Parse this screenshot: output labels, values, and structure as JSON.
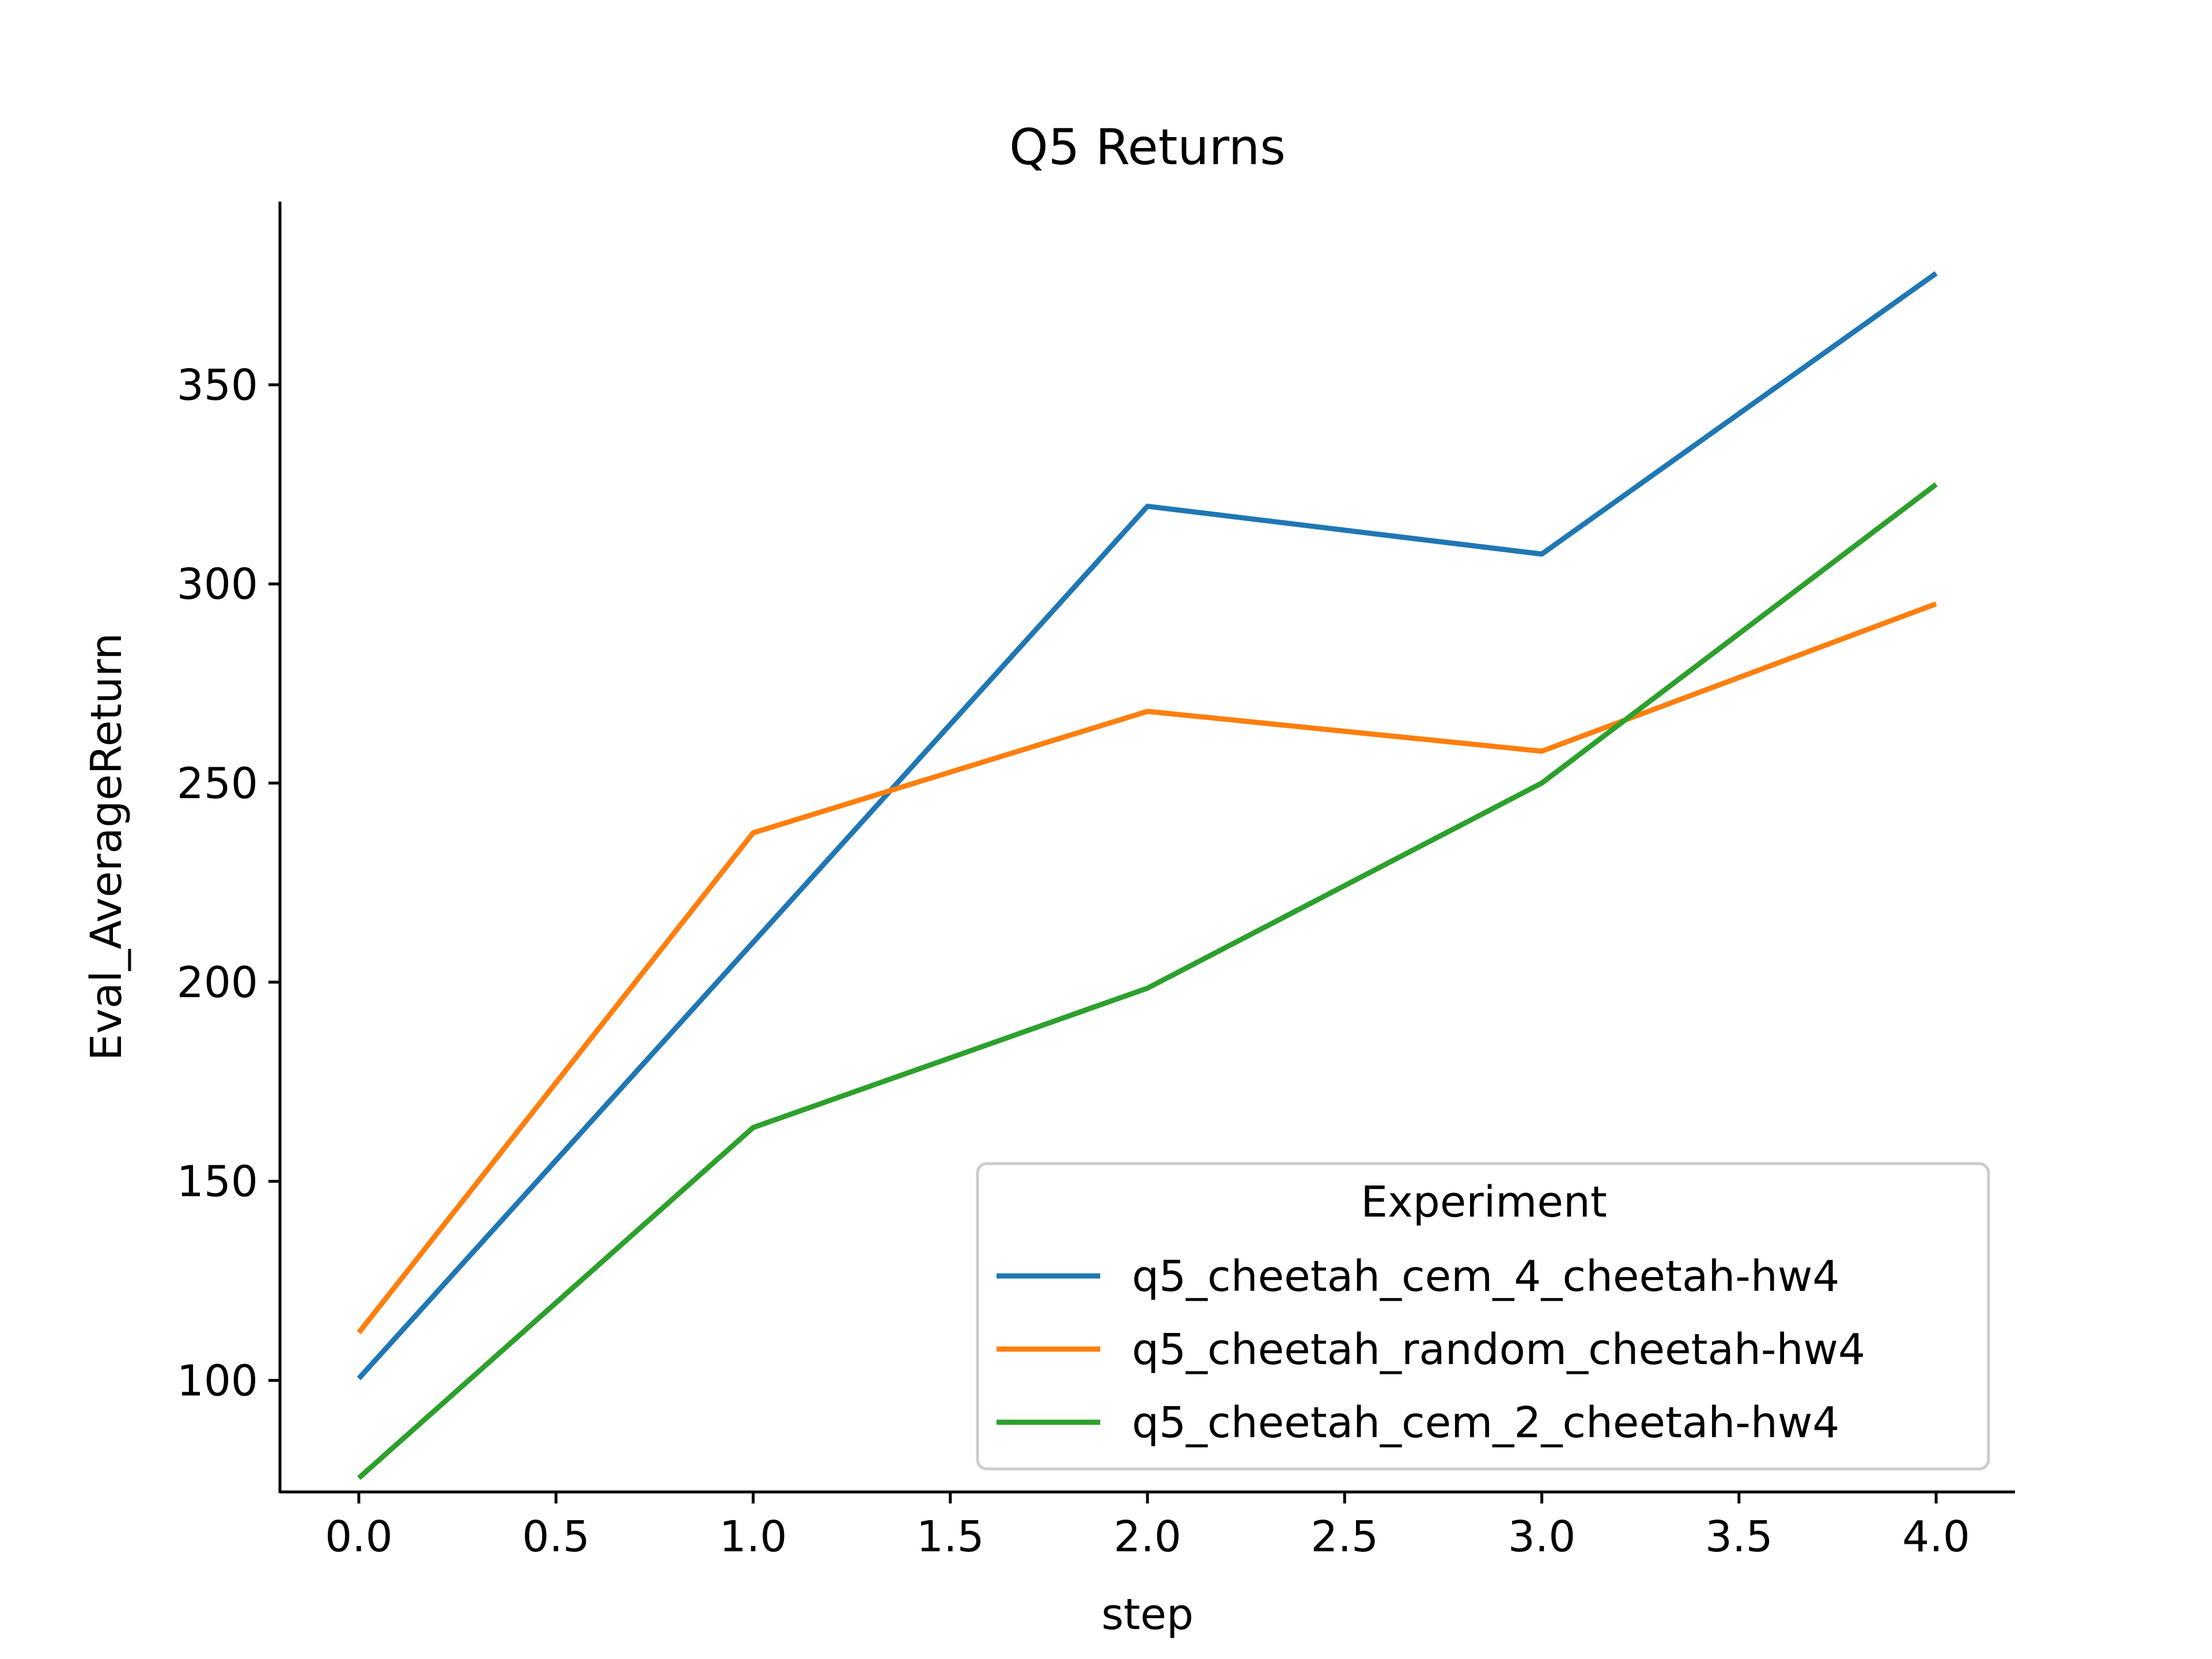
{
  "chart_data": {
    "type": "line",
    "title": "Q5 Returns",
    "xlabel": "step",
    "ylabel": "Eval_AverageReturn",
    "xlim": [
      -0.2,
      4.2
    ],
    "ylim": [
      72,
      396
    ],
    "x_ticks": [
      0.0,
      0.5,
      1.0,
      1.5,
      2.0,
      2.5,
      3.0,
      3.5,
      4.0
    ],
    "x_tick_labels": [
      "0.0",
      "0.5",
      "1.0",
      "1.5",
      "2.0",
      "2.5",
      "3.0",
      "3.5",
      "4.0"
    ],
    "y_ticks": [
      100,
      150,
      200,
      250,
      300,
      350
    ],
    "y_tick_labels": [
      "100",
      "150",
      "200",
      "250",
      "300",
      "350"
    ],
    "x": [
      0,
      1,
      2,
      3,
      4
    ],
    "series": [
      {
        "name": "q5_cheetah_cem_4_cheetah-hw4",
        "color": "#1f77b4",
        "values": [
          100.5,
          210,
          319.5,
          307.5,
          378
        ]
      },
      {
        "name": "q5_cheetah_random_cheetah-hw4",
        "color": "#ff7f0e",
        "values": [
          112,
          237.5,
          268,
          258,
          295
        ]
      },
      {
        "name": "q5_cheetah_cem_2_cheetah-hw4",
        "color": "#2ca02c",
        "values": [
          75.5,
          163.5,
          198.5,
          250,
          325
        ]
      }
    ],
    "legend": {
      "title": "Experiment",
      "placement": "lower-right"
    },
    "grid": false
  }
}
